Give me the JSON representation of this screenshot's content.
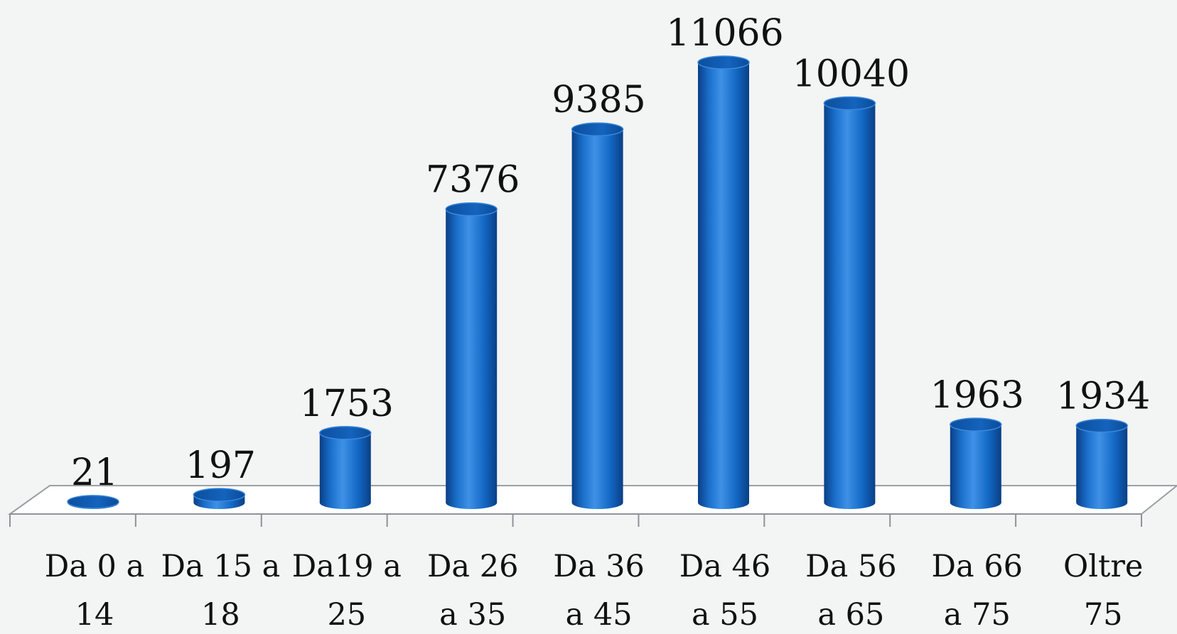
{
  "chart_data": {
    "type": "bar",
    "style": "3d-cylinder",
    "categories": [
      [
        "Da 0 a",
        "14"
      ],
      [
        "Da 15 a",
        "18"
      ],
      [
        "Da19 a",
        "25"
      ],
      [
        "Da 26",
        "a 35"
      ],
      [
        "Da 36",
        "a 45"
      ],
      [
        "Da 46",
        "a 55"
      ],
      [
        "Da 56",
        "a 65"
      ],
      [
        "Da 66",
        "a 75"
      ],
      [
        "Oltre",
        "75"
      ]
    ],
    "values": [
      21,
      197,
      1753,
      7376,
      9385,
      11066,
      10040,
      1963,
      1934
    ],
    "data_labels": [
      "21",
      "197",
      "1753",
      "7376",
      "9385",
      "11066",
      "10040",
      "1963",
      "1934"
    ],
    "ylim": [
      0,
      11066
    ],
    "grid": false,
    "legend": "none",
    "colors": {
      "bar": "#1268c4",
      "bar_dark": "#0a3f86",
      "bar_light": "#3f91e6",
      "top": "#0f5ab4",
      "floor": "#ffffff",
      "floor_edge": "#9aa0a6",
      "text": "#111111"
    }
  }
}
